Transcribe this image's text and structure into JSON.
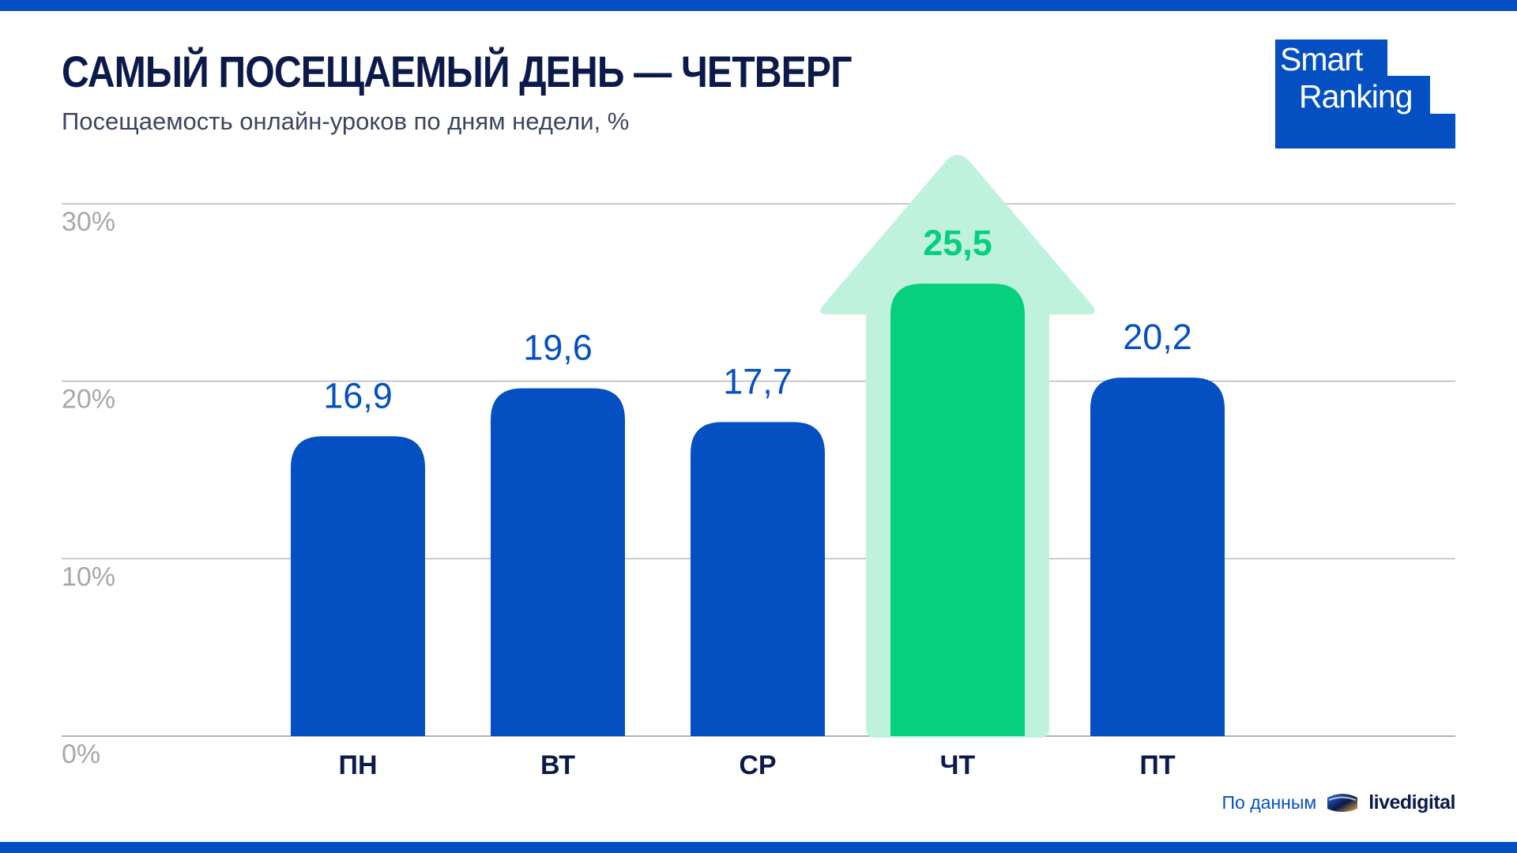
{
  "header": {
    "title": "САМЫЙ ПОСЕЩАЕМЫЙ ДЕНЬ — ЧЕТВЕРГ",
    "subtitle": "Посещаемость онлайн-уроков по дням недели, %"
  },
  "logo": {
    "line1": "Smart",
    "line2": "Ranking"
  },
  "source": {
    "label": "По данным",
    "brand": "livedigital"
  },
  "colors": {
    "frame": "#0450c2",
    "bar": "#0450c2",
    "highlight_bar": "#06d07e",
    "highlight_arrow": "#bff2dc",
    "grid": "#b9b9b9",
    "tick_label": "#a8a8a8",
    "category_label": "#0b1a4a"
  },
  "chart_data": {
    "type": "bar",
    "categories": [
      "ПН",
      "ВТ",
      "СР",
      "ЧТ",
      "ПТ"
    ],
    "values": [
      16.9,
      19.6,
      17.7,
      25.5,
      20.2
    ],
    "value_labels": [
      "16,9",
      "19,6",
      "17,7",
      "25,5",
      "20,2"
    ],
    "highlight_index": 3,
    "title": "САМЫЙ ПОСЕЩАЕМЫЙ ДЕНЬ — ЧЕТВЕРГ",
    "subtitle": "Посещаемость онлайн-уроков по дням недели, %",
    "xlabel": "",
    "ylabel": "",
    "ylim": [
      0,
      30
    ],
    "yticks": [
      0,
      10,
      20,
      30
    ],
    "ytick_labels": [
      "0%",
      "10%",
      "20%",
      "30%"
    ],
    "grid": true,
    "legend": "none"
  }
}
